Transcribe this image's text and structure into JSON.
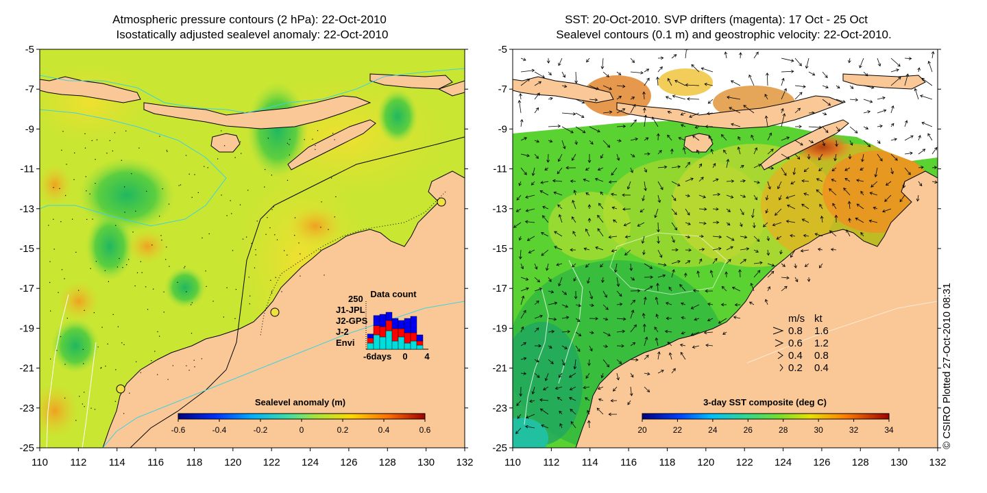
{
  "left_map": {
    "title_line1": "Atmospheric pressure contours (2 hPa): 22-Oct-2010",
    "title_line2": "Isostatically adjusted sealevel anomaly: 22-Oct-2010",
    "colorbar_title": "Sealevel anomaly (m)",
    "colorbar_ticks": [
      "-0.6",
      "-0.4",
      "-0.2",
      "0",
      "0.2",
      "0.4",
      "0.6"
    ],
    "data_count": {
      "title": "Data count",
      "max_label": "250",
      "legend": [
        {
          "label": "J1-JPL",
          "color": "#0000ee"
        },
        {
          "label": "J2-GPS",
          "color": "#ff00ff"
        },
        {
          "label": "J-2",
          "color": "#ff0000"
        },
        {
          "label": "Envi",
          "color": "#00dddd"
        }
      ],
      "x_labels": [
        "-6days",
        "0",
        "4"
      ],
      "bars": [
        {
          "envi": 0.15,
          "j2": 0.12,
          "j1": 0.1
        },
        {
          "envi": 0.35,
          "j2": 0.22,
          "j1": 0.25
        },
        {
          "envi": 0.3,
          "j2": 0.25,
          "j1": 0.3
        },
        {
          "envi": 0.45,
          "j2": 0.25,
          "j1": 0.2
        },
        {
          "envi": 0.2,
          "j2": 0.3,
          "j1": 0.25
        },
        {
          "envi": 0.3,
          "j2": 0.2,
          "j1": 0.2
        },
        {
          "envi": 0.15,
          "j2": 0.25,
          "j1": 0.35
        },
        {
          "envi": 0.2,
          "j2": 0.2,
          "j1": 0.4
        },
        {
          "envi": 0.1,
          "j2": 0.1,
          "j1": 0.15
        }
      ]
    }
  },
  "right_map": {
    "title_line1": "SST: 20-Oct-2010. SVP drifters (magenta): 17 Oct - 25 Oct",
    "title_line2": "Sealevel contours (0.1 m) and geostrophic velocity: 22-Oct-2010.",
    "colorbar_title": "3-day SST composite (deg C)",
    "colorbar_ticks": [
      "20",
      "22",
      "24",
      "26",
      "28",
      "30",
      "32",
      "34"
    ],
    "speed_legend": {
      "header_ms": "m/s",
      "header_kt": "kt",
      "rows": [
        {
          "ms": "0.8",
          "kt": "1.6"
        },
        {
          "ms": "0.6",
          "kt": "1.2"
        },
        {
          "ms": "0.4",
          "kt": "0.8"
        },
        {
          "ms": "0.2",
          "kt": "0.4"
        }
      ]
    }
  },
  "axes": {
    "lat_labels": [
      "-5",
      "-7",
      "-9",
      "-11",
      "-13",
      "-15",
      "-17",
      "-19",
      "-21",
      "-23",
      "-25"
    ],
    "lon_labels": [
      "110",
      "112",
      "114",
      "116",
      "118",
      "120",
      "122",
      "124",
      "126",
      "128",
      "130",
      "132"
    ]
  },
  "credit": "© CSIRO Plotted 27-Oct-2010 08:31",
  "colors": {
    "land": "#fac896",
    "sea_base_left": "#c8e632",
    "sea_base_right": "#5ad232",
    "contour_cyan": "#40d0e0",
    "drifter_magenta": "#ff00ff"
  }
}
